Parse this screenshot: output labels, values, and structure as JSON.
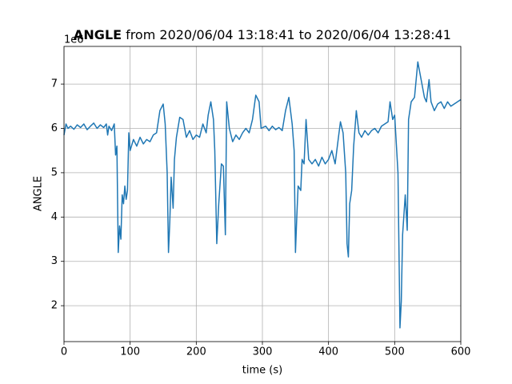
{
  "chart_data": {
    "type": "line",
    "title_bold": "ANGLE",
    "title": "from 2020/06/04 13:18:41 to 2020/06/04 13:28:41",
    "offset_label": "1e6",
    "xlabel": "time (s)",
    "ylabel": "ANGLE",
    "color": "#1f77b4",
    "grid": true,
    "xlim": [
      0,
      600
    ],
    "xticks": [
      0,
      100,
      200,
      300,
      400,
      500,
      600
    ],
    "ylim": [
      1.19,
      7.85
    ],
    "yticks": [
      2,
      3,
      4,
      5,
      6,
      7
    ],
    "x": [
      0,
      3,
      6,
      10,
      15,
      20,
      25,
      30,
      35,
      40,
      45,
      50,
      55,
      60,
      64,
      66,
      68,
      72,
      76,
      78,
      80,
      82,
      84,
      86,
      88,
      90,
      92,
      94,
      96,
      98,
      100,
      105,
      110,
      115,
      120,
      125,
      130,
      135,
      140,
      145,
      150,
      153,
      156,
      158,
      160,
      162,
      165,
      167,
      170,
      175,
      180,
      185,
      190,
      195,
      200,
      205,
      210,
      215,
      218,
      222,
      226,
      228,
      231,
      234,
      238,
      241,
      244,
      246,
      250,
      255,
      260,
      265,
      270,
      275,
      280,
      285,
      290,
      295,
      298,
      305,
      310,
      315,
      320,
      325,
      330,
      335,
      340,
      345,
      348,
      350,
      352,
      354,
      358,
      360,
      363,
      366,
      370,
      375,
      380,
      385,
      390,
      395,
      400,
      405,
      410,
      415,
      418,
      422,
      426,
      428,
      430,
      432,
      435,
      438,
      442,
      446,
      450,
      455,
      460,
      465,
      470,
      475,
      480,
      485,
      490,
      493,
      497,
      500,
      505,
      508,
      510,
      512,
      516,
      519,
      521,
      525,
      530,
      535,
      540,
      545,
      548,
      552,
      555,
      560,
      565,
      570,
      575,
      580,
      585,
      590,
      595,
      600
    ],
    "values": [
      5.85,
      6.1,
      6.0,
      6.05,
      5.98,
      6.08,
      6.02,
      6.1,
      5.97,
      6.05,
      6.12,
      6.0,
      6.08,
      6.02,
      6.1,
      5.85,
      6.05,
      5.95,
      6.1,
      5.4,
      5.6,
      3.2,
      3.8,
      3.5,
      4.5,
      4.3,
      4.7,
      4.4,
      4.6,
      5.9,
      5.5,
      5.75,
      5.6,
      5.8,
      5.65,
      5.75,
      5.7,
      5.85,
      5.9,
      6.4,
      6.55,
      6.1,
      5.0,
      3.2,
      3.9,
      4.9,
      4.2,
      5.3,
      5.8,
      6.25,
      6.2,
      5.8,
      5.95,
      5.75,
      5.85,
      5.8,
      6.1,
      5.9,
      6.3,
      6.6,
      6.2,
      5.5,
      3.4,
      4.3,
      5.2,
      5.15,
      3.6,
      6.6,
      6.0,
      5.7,
      5.85,
      5.75,
      5.9,
      6.0,
      5.9,
      6.2,
      6.75,
      6.6,
      6.0,
      6.05,
      5.95,
      6.05,
      5.97,
      6.02,
      5.95,
      6.4,
      6.7,
      6.1,
      5.5,
      3.2,
      4.0,
      4.7,
      4.6,
      5.3,
      5.2,
      6.2,
      5.3,
      5.2,
      5.3,
      5.15,
      5.35,
      5.2,
      5.3,
      5.5,
      5.2,
      5.8,
      6.15,
      5.9,
      5.0,
      3.4,
      3.1,
      4.3,
      4.6,
      5.6,
      6.4,
      5.9,
      5.8,
      5.95,
      5.85,
      5.95,
      6.0,
      5.9,
      6.05,
      6.1,
      6.15,
      6.6,
      6.2,
      6.3,
      5.0,
      1.5,
      2.1,
      3.6,
      4.5,
      3.7,
      6.2,
      6.6,
      6.7,
      7.5,
      7.1,
      6.7,
      6.6,
      7.1,
      6.6,
      6.4,
      6.55,
      6.6,
      6.45,
      6.6,
      6.5,
      6.55,
      6.6,
      6.65
    ]
  }
}
